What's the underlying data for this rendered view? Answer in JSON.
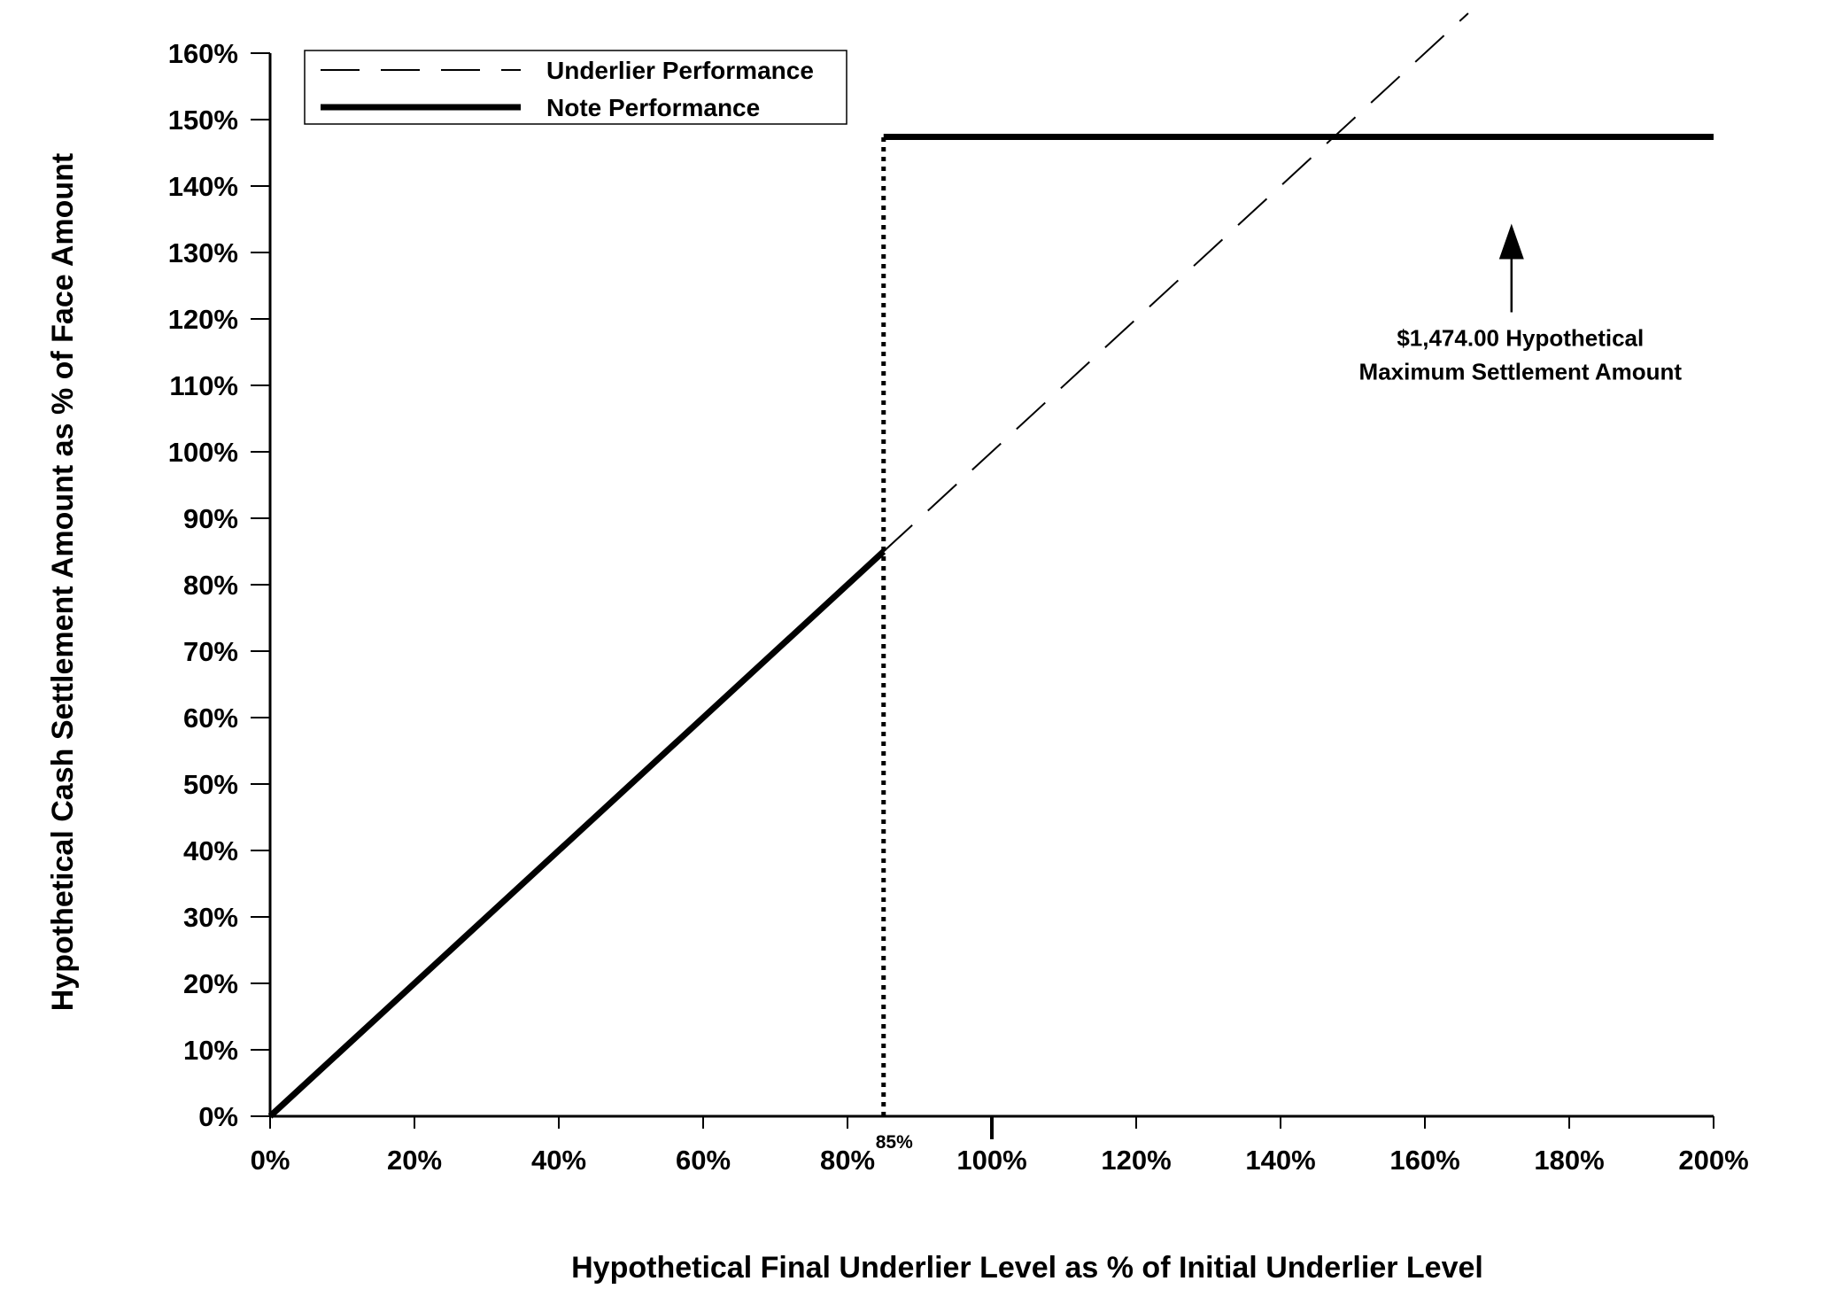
{
  "chart_data": {
    "type": "line",
    "x_axis": {
      "label": "Hypothetical Final Underlier Level as % of Initial Underlier Level",
      "range": [
        0,
        200
      ],
      "ticks": [
        0,
        20,
        40,
        60,
        80,
        100,
        120,
        140,
        160,
        180,
        200
      ],
      "tick_labels": [
        "0%",
        "20%",
        "40%",
        "60%",
        "80%",
        "100%",
        "120%",
        "140%",
        "160%",
        "180%",
        "200%"
      ]
    },
    "y_axis": {
      "label": "Hypothetical Cash Settlement Amount as % of Face Amount",
      "range": [
        0,
        160
      ],
      "ticks": [
        0,
        10,
        20,
        30,
        40,
        50,
        60,
        70,
        80,
        90,
        100,
        110,
        120,
        130,
        140,
        150,
        160
      ],
      "tick_labels": [
        "0%",
        "10%",
        "20%",
        "30%",
        "40%",
        "50%",
        "60%",
        "70%",
        "80%",
        "90%",
        "100%",
        "110%",
        "120%",
        "130%",
        "140%",
        "150%",
        "160%"
      ]
    },
    "series": [
      {
        "name": "Underlier Performance",
        "style": "dashed",
        "color": "#000000",
        "points": [
          [
            85,
            85
          ],
          [
            166,
            166
          ]
        ]
      },
      {
        "name": "Note Performance",
        "style": "solid-thick",
        "color": "#000000",
        "points": [
          [
            0,
            0
          ],
          [
            85,
            85
          ]
        ]
      },
      {
        "name": "Note Performance",
        "style": "solid-thick",
        "color": "#000000",
        "points": [
          [
            85,
            147.4
          ],
          [
            200,
            147.4
          ]
        ]
      }
    ],
    "reference_line": {
      "x": 85,
      "y_from": 0,
      "y_to": 147.4,
      "style": "dotted",
      "label": "85%"
    },
    "annotation": {
      "lines": [
        "$1,474.00 Hypothetical",
        "Maximum Settlement Amount"
      ],
      "arrow_x": 172,
      "arrow_tip_y": 147.4
    },
    "legend": {
      "position": "top-left",
      "items": [
        {
          "label": "Underlier Performance",
          "style": "dashed"
        },
        {
          "label": "Note Performance",
          "style": "solid-thick"
        }
      ]
    },
    "grid": false
  }
}
